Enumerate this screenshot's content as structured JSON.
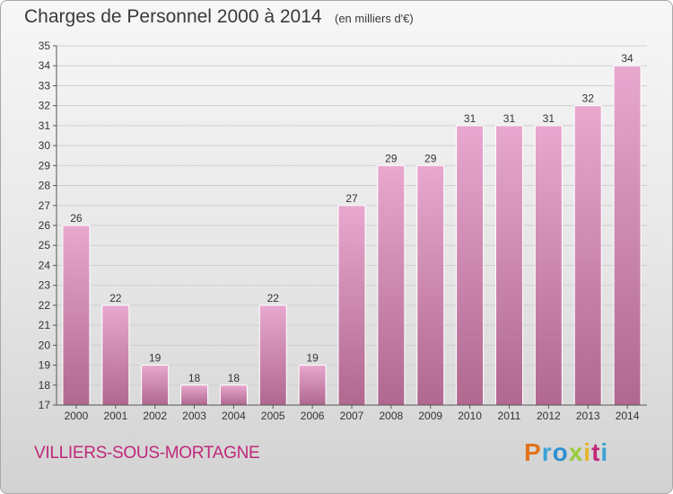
{
  "header": {
    "title": "Charges de Personnel 2000 à 2014",
    "unit": "(en milliers d'€)"
  },
  "footer": {
    "commune": "VILLIERS-SOUS-MORTAGNE",
    "logo": [
      "P",
      "r",
      "o",
      "x",
      "i",
      "t",
      "i"
    ]
  },
  "colors": {
    "bar_top": "#e8a8cf",
    "bar_bottom": "#b0688f",
    "accent": "#c0287a"
  },
  "chart_data": {
    "type": "bar",
    "title": "Charges de Personnel 2000 à 2014",
    "subtitle": "(en milliers d'€)",
    "categories": [
      "2000",
      "2001",
      "2002",
      "2003",
      "2004",
      "2005",
      "2006",
      "2007",
      "2008",
      "2009",
      "2010",
      "2011",
      "2012",
      "2013",
      "2014"
    ],
    "values": [
      26,
      22,
      19,
      18,
      18,
      22,
      19,
      27,
      29,
      29,
      31,
      31,
      31,
      32,
      34
    ],
    "ylim": [
      17,
      35
    ],
    "yticks": [
      17,
      18,
      19,
      20,
      21,
      22,
      23,
      24,
      25,
      26,
      27,
      28,
      29,
      30,
      31,
      32,
      33,
      34,
      35
    ],
    "grid": true,
    "legend": "none"
  }
}
